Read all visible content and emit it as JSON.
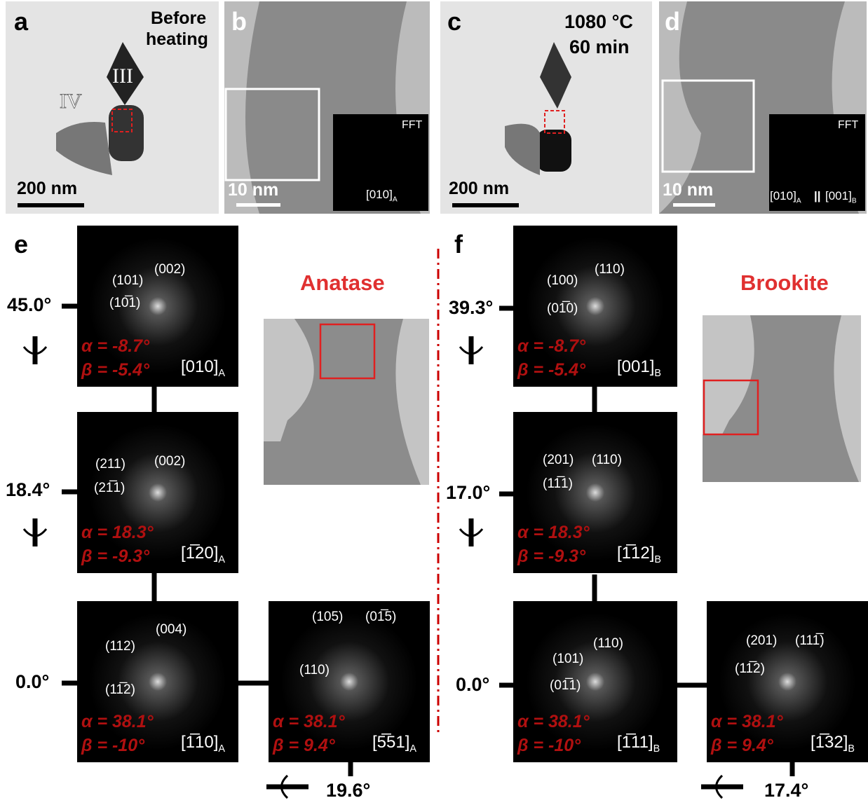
{
  "top": {
    "a": {
      "label": "a",
      "note": [
        "Before",
        "heating"
      ],
      "scale": "200 nm",
      "markers": [
        "IV",
        "III"
      ]
    },
    "b": {
      "label": "b",
      "scale": "10 nm",
      "fft": "FFT",
      "zone": [
        {
          "index": "[010]",
          "sub": "A"
        }
      ]
    },
    "c": {
      "label": "c",
      "note": [
        "1080 °C",
        "60 min"
      ],
      "scale": "200 nm"
    },
    "d": {
      "label": "d",
      "scale": "10 nm",
      "fft": "FFT",
      "sep": "||",
      "zone": [
        {
          "index": "[010]",
          "sub": "A"
        },
        {
          "index": "[001]",
          "sub": "B"
        }
      ]
    }
  },
  "e": {
    "label": "e",
    "phase": "Anatase",
    "angles": [
      "45.0°",
      "18.4°",
      "0.0°",
      "19.6°"
    ],
    "patterns": [
      {
        "spots": [
          "(101)",
          "(002)",
          "(10̅1)"
        ],
        "alpha": "α = -8.7°",
        "beta": "β = -5.4°",
        "zone": {
          "index": "[010]",
          "sub": "A"
        }
      },
      {
        "spots": [
          "(211)",
          "(002)",
          "(21̅1)"
        ],
        "alpha": "α = 18.3°",
        "beta": "β = -9.3°",
        "zone": {
          "index": "[1̅20]",
          "sub": "A"
        }
      },
      {
        "spots": [
          "(112)",
          "(004)",
          "(11̅2)"
        ],
        "alpha": "α = 38.1°",
        "beta": "β = -10°",
        "zone": {
          "index": "[1̅10]",
          "sub": "A"
        }
      },
      {
        "spots": [
          "(105)",
          "(01̅5)",
          "(110)"
        ],
        "alpha": "α = 38.1°",
        "beta": "β = 9.4°",
        "zone": {
          "index": "[5̅51]",
          "sub": "A"
        }
      }
    ]
  },
  "f": {
    "label": "f",
    "phase": "Brookite",
    "angles": [
      "39.3°",
      "17.0°",
      "0.0°",
      "17.4°"
    ],
    "patterns": [
      {
        "spots": [
          "(100)",
          "(110)",
          "(01̅0)"
        ],
        "alpha": "α = -8.7°",
        "beta": "β = -5.4°",
        "zone": {
          "index": "[001]",
          "sub": "B"
        }
      },
      {
        "spots": [
          "(201)",
          "(110)",
          "(11̅1)"
        ],
        "alpha": "α = 18.3°",
        "beta": "β = -9.3°",
        "zone": {
          "index": "[1̅12]",
          "sub": "B"
        }
      },
      {
        "spots": [
          "(101)",
          "(110)",
          "(01̅1)"
        ],
        "alpha": "α = 38.1°",
        "beta": "β = -10°",
        "zone": {
          "index": "[1̅11]",
          "sub": "B"
        }
      },
      {
        "spots": [
          "(201)",
          "(111̅)",
          "(11̅2)"
        ],
        "alpha": "α = 38.1°",
        "beta": "β = 9.4°",
        "zone": {
          "index": "[1̅32]",
          "sub": "B"
        }
      }
    ]
  }
}
